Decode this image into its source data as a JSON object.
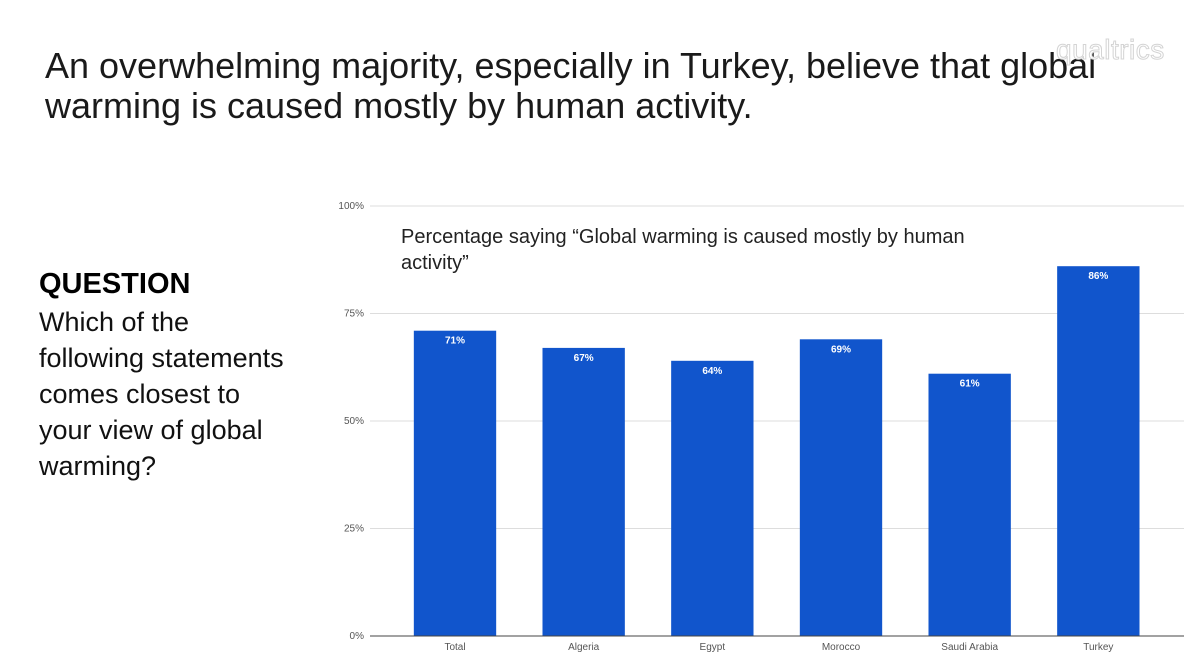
{
  "headline": "An overwhelming majority, especially in Turkey, believe that global warming is caused mostly by human activity.",
  "watermark": "qualtrics",
  "question": {
    "label": "QUESTION",
    "text": "Which of the following statements comes closest to your view of global warming?"
  },
  "colors": {
    "bar": "#1155cc",
    "grid": "#dddddd",
    "axis": "#444444",
    "tick_text": "#555555",
    "bar_label": "#ffffff"
  },
  "chart_data": {
    "type": "bar",
    "title": "Percentage saying “Global warming is caused mostly by human activity”",
    "title_lines": [
      "Percentage saying “Global warming is caused mostly by human",
      "activity”"
    ],
    "categories": [
      "Total",
      "Algeria",
      "Egypt",
      "Morocco",
      "Saudi Arabia",
      "Turkey"
    ],
    "values": [
      71,
      67,
      64,
      69,
      61,
      86
    ],
    "value_labels": [
      "71%",
      "67%",
      "64%",
      "69%",
      "61%",
      "86%"
    ],
    "ylim": [
      0,
      100
    ],
    "yticks": [
      0,
      25,
      50,
      75,
      100
    ],
    "ytick_labels": [
      "0%",
      "25%",
      "50%",
      "75%",
      "100%"
    ],
    "grid": true,
    "legend": false
  }
}
